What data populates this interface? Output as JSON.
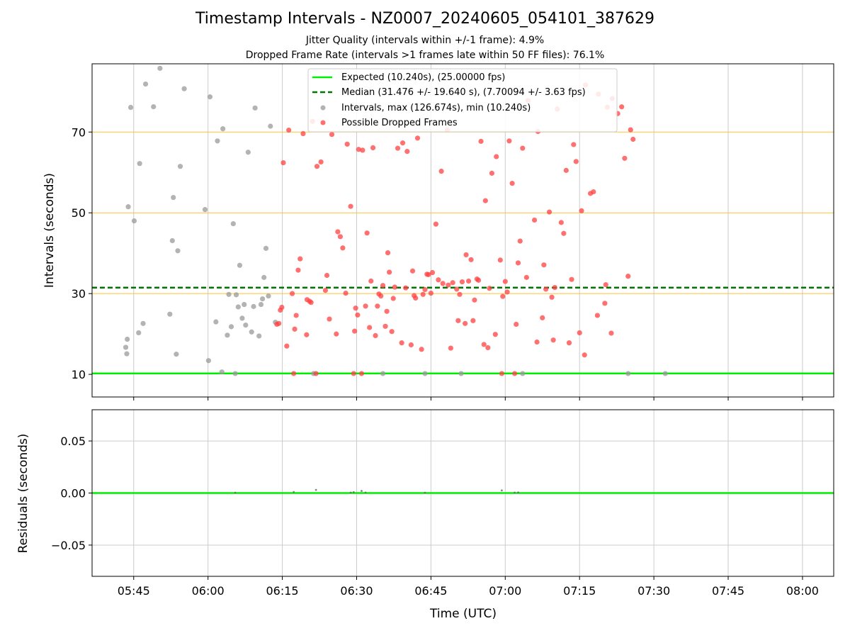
{
  "figure": {
    "title": "Timestamp Intervals - NZ0007_20240605_054101_387629",
    "subtitle_jitter": "Jitter Quality (intervals within +/-1 frame): 4.9%",
    "subtitle_dropped": "Dropped Frame Rate (intervals >1 frames late within 50 FF files): 76.1%"
  },
  "colors": {
    "expected": "#00ee00",
    "median": "#007700",
    "intervals": "#999999",
    "dropped": "#ff4040",
    "hlines": "#ffc233",
    "grid": "#cccccc"
  },
  "chart_data": [
    {
      "type": "scatter",
      "xlabel": "Time (UTC)",
      "ylabel": "Intervals (seconds)",
      "x_ticks": [
        "05:45",
        "06:00",
        "06:15",
        "06:30",
        "06:45",
        "07:00",
        "07:15",
        "07:30",
        "07:45",
        "08:00"
      ],
      "x_tick_minutes": [
        345,
        360,
        375,
        390,
        405,
        420,
        435,
        450,
        465,
        480
      ],
      "xlim_minutes": [
        336.6,
        486.3
      ],
      "y_ticks": [
        10,
        30,
        50,
        70
      ],
      "ylim": [
        4.4,
        130.7
      ],
      "y_scale": "piecewise (compressed above 70 s)",
      "y_scale_map": [
        [
          0,
          0
        ],
        [
          70,
          70
        ],
        [
          130,
          86.7
        ]
      ],
      "legend": {
        "placement": "top-center",
        "entries": [
          "Expected (10.240s), (25.00000 fps)",
          "Median (31.476 +/- 19.640 s), (7.70094 +/- 3.63 fps)",
          "Intervals, max (126.674s), min (10.240s)",
          "Possible Dropped Frames"
        ]
      },
      "expected_line": 10.24,
      "median_line": 31.476,
      "reference_lines": [
        30,
        50,
        70
      ],
      "series": [
        {
          "name": "Intervals, max (126.674s), min (10.240s)",
          "points": [
            [
              343.4,
              16.7
            ],
            [
              343.6,
              15.1
            ],
            [
              343.7,
              18.7
            ],
            [
              343.9,
              51.5
            ],
            [
              344.4,
              91.9
            ],
            [
              345.1,
              48.0
            ],
            [
              346.0,
              20.3
            ],
            [
              346.2,
              62.2
            ],
            [
              346.9,
              22.6
            ],
            [
              347.4,
              112.7
            ],
            [
              349.0,
              92.5
            ],
            [
              350.3,
              126.7
            ],
            [
              352.3,
              24.9
            ],
            [
              352.8,
              43.1
            ],
            [
              353.0,
              53.8
            ],
            [
              353.6,
              15.0
            ],
            [
              353.9,
              40.6
            ],
            [
              354.4,
              61.5
            ],
            [
              355.2,
              108.5
            ],
            [
              359.4,
              50.8
            ],
            [
              360.1,
              13.4
            ],
            [
              360.4,
              101.3
            ],
            [
              361.6,
              23.0
            ],
            [
              361.9,
              67.8
            ],
            [
              362.8,
              10.6
            ],
            [
              363.0,
              72.9
            ],
            [
              363.9,
              19.7
            ],
            [
              364.2,
              29.8
            ],
            [
              364.7,
              21.8
            ],
            [
              365.1,
              47.3
            ],
            [
              365.5,
              10.2
            ],
            [
              365.7,
              29.7
            ],
            [
              366.1,
              26.7
            ],
            [
              366.4,
              37.0
            ],
            [
              366.9,
              23.9
            ],
            [
              367.3,
              27.3
            ],
            [
              367.6,
              22.2
            ],
            [
              368.1,
              65.0
            ],
            [
              368.8,
              20.5
            ],
            [
              369.2,
              26.8
            ],
            [
              369.5,
              91.4
            ],
            [
              370.3,
              19.5
            ],
            [
              370.7,
              27.3
            ],
            [
              371.0,
              28.7
            ],
            [
              371.3,
              34.0
            ],
            [
              371.7,
              41.2
            ],
            [
              372.2,
              29.4
            ],
            [
              372.6,
              75.2
            ],
            [
              373.6,
              22.9
            ],
            [
              381.3,
              10.2
            ],
            [
              395.3,
              10.2
            ],
            [
              403.8,
              10.2
            ],
            [
              411.1,
              10.2
            ],
            [
              423.5,
              10.2
            ],
            [
              444.8,
              10.2
            ],
            [
              452.3,
              10.2
            ]
          ]
        },
        {
          "name": "Possible Dropped Frames",
          "points": [
            [
              373.9,
              22.4
            ],
            [
              374.3,
              22.6
            ],
            [
              374.6,
              25.9
            ],
            [
              374.9,
              26.6
            ],
            [
              375.2,
              62.4
            ],
            [
              375.9,
              17.0
            ],
            [
              376.3,
              71.7
            ],
            [
              377.0,
              30.0
            ],
            [
              377.3,
              10.2
            ],
            [
              377.5,
              21.2
            ],
            [
              377.8,
              24.6
            ],
            [
              378.2,
              35.8
            ],
            [
              378.6,
              38.6
            ],
            [
              379.2,
              69.6
            ],
            [
              379.9,
              19.8
            ],
            [
              380.0,
              28.5
            ],
            [
              380.5,
              28.1
            ],
            [
              380.8,
              27.8
            ],
            [
              381.1,
              79.5
            ],
            [
              381.8,
              10.2
            ],
            [
              382.0,
              61.5
            ],
            [
              382.8,
              62.6
            ],
            [
              383.7,
              30.8
            ],
            [
              384.0,
              34.5
            ],
            [
              384.5,
              23.7
            ],
            [
              385.0,
              69.4
            ],
            [
              385.9,
              20.0
            ],
            [
              386.2,
              45.3
            ],
            [
              386.7,
              44.1
            ],
            [
              387.2,
              41.3
            ],
            [
              387.8,
              30.1
            ],
            [
              388.1,
              67.0
            ],
            [
              388.8,
              51.6
            ],
            [
              389.4,
              10.2
            ],
            [
              389.6,
              20.7
            ],
            [
              389.8,
              26.4
            ],
            [
              390.2,
              24.7
            ],
            [
              390.4,
              65.7
            ],
            [
              391.0,
              10.2
            ],
            [
              391.2,
              65.5
            ],
            [
              391.8,
              26.9
            ],
            [
              392.1,
              45.0
            ],
            [
              392.6,
              21.6
            ],
            [
              392.9,
              33.1
            ],
            [
              393.3,
              66.1
            ],
            [
              393.8,
              19.6
            ],
            [
              394.2,
              26.9
            ],
            [
              394.5,
              29.9
            ],
            [
              394.9,
              29.4
            ],
            [
              395.3,
              32.0
            ],
            [
              395.8,
              21.9
            ],
            [
              396.1,
              25.6
            ],
            [
              396.3,
              40.1
            ],
            [
              396.6,
              35.3
            ],
            [
              397.1,
              20.6
            ],
            [
              397.4,
              28.8
            ],
            [
              397.7,
              31.6
            ],
            [
              398.3,
              66.0
            ],
            [
              399.1,
              17.8
            ],
            [
              399.3,
              67.3
            ],
            [
              399.9,
              31.4
            ],
            [
              400.2,
              65.2
            ],
            [
              401.0,
              17.3
            ],
            [
              401.3,
              35.6
            ],
            [
              401.6,
              29.5
            ],
            [
              401.9,
              28.9
            ],
            [
              402.3,
              68.5
            ],
            [
              403.1,
              16.2
            ],
            [
              403.4,
              29.8
            ],
            [
              403.8,
              31.0
            ],
            [
              404.2,
              34.8
            ],
            [
              404.5,
              34.7
            ],
            [
              405.0,
              30.1
            ],
            [
              405.3,
              35.2
            ],
            [
              406.0,
              47.2
            ],
            [
              406.5,
              33.4
            ],
            [
              407.1,
              60.3
            ],
            [
              407.4,
              32.5
            ],
            [
              408.3,
              72.1
            ],
            [
              408.5,
              32.1
            ],
            [
              409.0,
              16.5
            ],
            [
              409.4,
              32.7
            ],
            [
              410.2,
              31.1
            ],
            [
              410.5,
              23.3
            ],
            [
              410.8,
              29.8
            ],
            [
              411.3,
              32.9
            ],
            [
              411.9,
              22.6
            ],
            [
              412.1,
              39.6
            ],
            [
              412.6,
              33.1
            ],
            [
              413.1,
              38.4
            ],
            [
              413.5,
              23.3
            ],
            [
              413.8,
              28.4
            ],
            [
              414.3,
              33.6
            ],
            [
              414.6,
              33.3
            ],
            [
              415.1,
              67.7
            ],
            [
              415.7,
              17.4
            ],
            [
              416.0,
              53.0
            ],
            [
              416.5,
              16.6
            ],
            [
              416.8,
              31.3
            ],
            [
              417.3,
              59.8
            ],
            [
              418.0,
              19.9
            ],
            [
              418.2,
              63.9
            ],
            [
              419.0,
              38.3
            ],
            [
              419.3,
              10.2
            ],
            [
              419.5,
              29.3
            ],
            [
              420.0,
              33.0
            ],
            [
              420.4,
              30.4
            ],
            [
              420.8,
              67.8
            ],
            [
              421.4,
              57.3
            ],
            [
              421.9,
              10.2
            ],
            [
              422.2,
              22.4
            ],
            [
              422.6,
              37.6
            ],
            [
              423.0,
              43.0
            ],
            [
              423.5,
              66.0
            ],
            [
              424.3,
              34.0
            ],
            [
              424.6,
              98.0
            ],
            [
              425.9,
              48.2
            ],
            [
              426.4,
              18.0
            ],
            [
              426.6,
              70.5
            ],
            [
              427.5,
              24.0
            ],
            [
              427.8,
              37.1
            ],
            [
              428.2,
              31.1
            ],
            [
              428.9,
              50.2
            ],
            [
              429.4,
              29.1
            ],
            [
              429.7,
              18.5
            ],
            [
              430.0,
              31.5
            ],
            [
              430.5,
              90.4
            ],
            [
              431.3,
              47.6
            ],
            [
              431.8,
              44.9
            ],
            [
              432.3,
              60.5
            ],
            [
              432.9,
              17.8
            ],
            [
              433.4,
              33.5
            ],
            [
              433.8,
              66.9
            ],
            [
              434.3,
              62.7
            ],
            [
              435.0,
              20.3
            ],
            [
              435.4,
              50.5
            ],
            [
              436.0,
              14.8
            ],
            [
              436.2,
              111.9
            ],
            [
              437.2,
              54.8
            ],
            [
              437.8,
              55.2
            ],
            [
              438.6,
              24.6
            ],
            [
              438.8,
              103.7
            ],
            [
              440.1,
              27.6
            ],
            [
              440.3,
              32.2
            ],
            [
              440.6,
              92.1
            ],
            [
              441.4,
              20.2
            ],
            [
              441.6,
              99.8
            ],
            [
              442.7,
              86.4
            ],
            [
              443.5,
              92.4
            ],
            [
              444.1,
              63.5
            ],
            [
              444.8,
              34.3
            ],
            [
              445.3,
              72.0
            ],
            [
              445.8,
              68.2
            ]
          ]
        }
      ]
    },
    {
      "type": "scatter",
      "xlabel": "Time (UTC)",
      "ylabel": "Residuals (seconds)",
      "y_ticks": [
        "0.05",
        "0.00",
        "−0.05"
      ],
      "y_tick_values": [
        0.05,
        0.0,
        -0.05
      ],
      "ylim": [
        -0.08,
        0.08
      ],
      "zero_line": 0.0,
      "series": [
        {
          "name": "Residuals",
          "points": [
            [
              365.5,
              0.0003
            ],
            [
              377.3,
              0.001
            ],
            [
              381.8,
              0.003
            ],
            [
              388.8,
              0.0004
            ],
            [
              389.4,
              0.0008
            ],
            [
              391.0,
              0.002
            ],
            [
              391.8,
              0.0004
            ],
            [
              403.8,
              0.0003
            ],
            [
              419.3,
              0.0025
            ],
            [
              421.9,
              0.0004
            ],
            [
              422.6,
              0.0006
            ]
          ]
        }
      ]
    }
  ]
}
